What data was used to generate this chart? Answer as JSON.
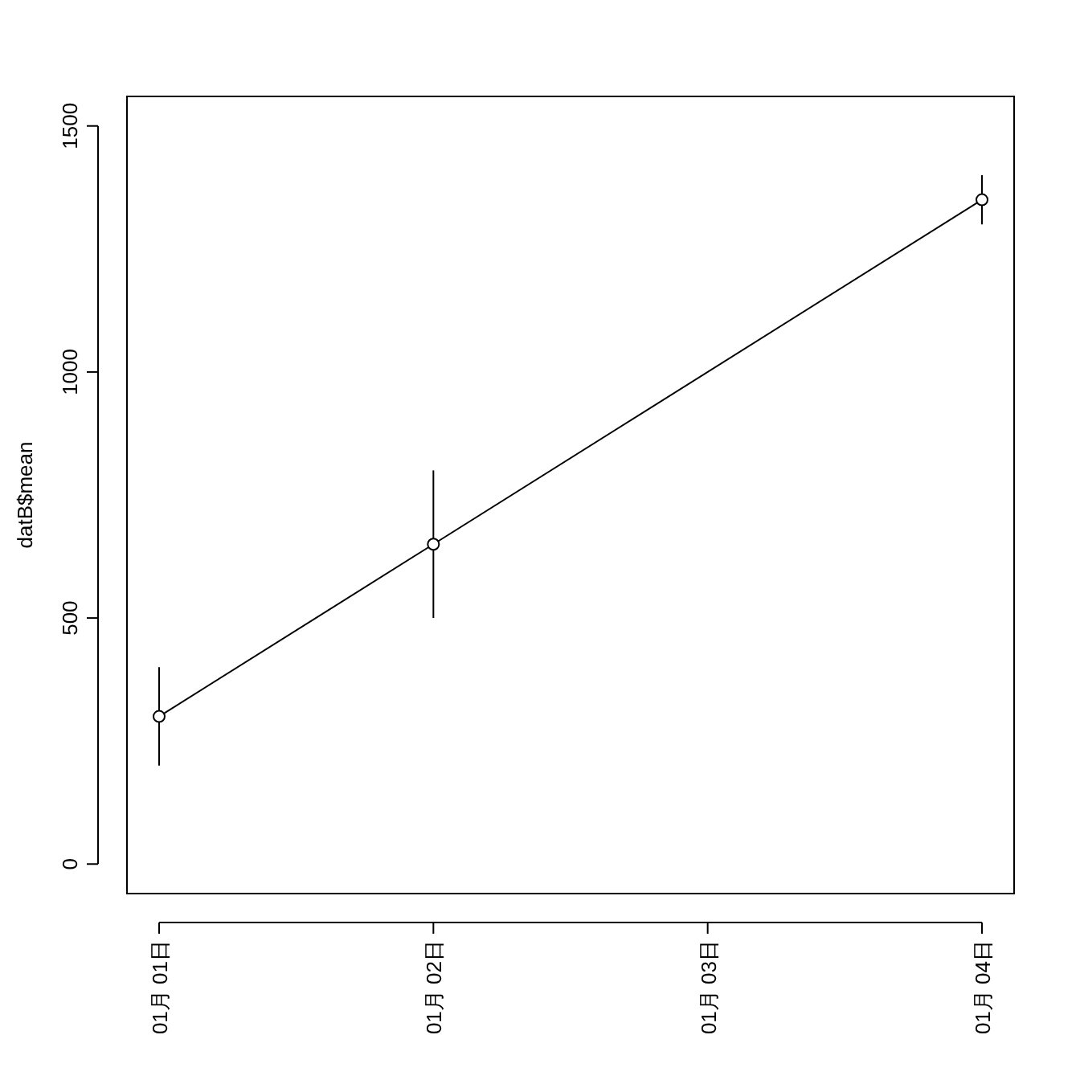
{
  "chart_data": {
    "type": "line",
    "ylabel": "datB$mean",
    "color": "#000000",
    "marker": "circle",
    "line_style": "solid",
    "x": [
      "--01-01",
      "--01-02",
      "--01-04"
    ],
    "values": [
      300,
      650,
      1350
    ],
    "errors": [
      [
        200,
        400
      ],
      [
        500,
        800
      ],
      [
        1300,
        1400
      ]
    ],
    "xlim": [
      "--01-01",
      "--01-04"
    ],
    "xticks": [
      {
        "value": "--01-01",
        "label": "01月 01日"
      },
      {
        "value": "--01-02",
        "label": "01月 02日"
      },
      {
        "value": "--01-03",
        "label": "01月 03日"
      },
      {
        "value": "--01-04",
        "label": "01月 04日"
      }
    ],
    "ylim": [
      -60,
      1560
    ],
    "yticks": [
      0,
      500,
      1000,
      1500
    ]
  }
}
